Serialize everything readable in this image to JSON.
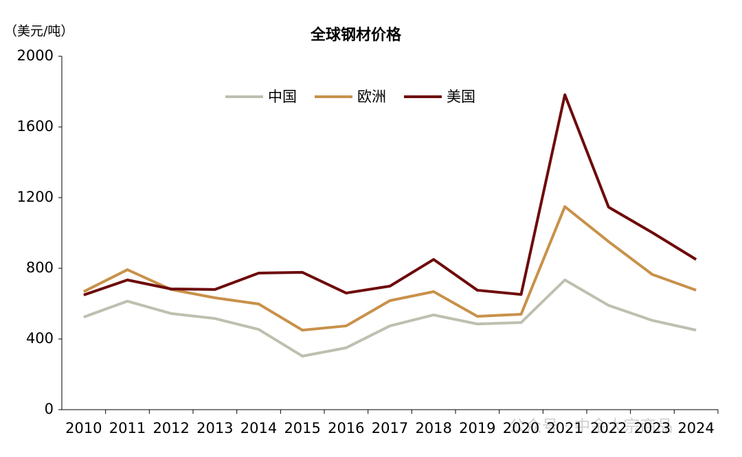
{
  "chart_data": {
    "type": "line",
    "title": "全球钢材价格",
    "y_label": "（美元/吨）",
    "categories": [
      "2010",
      "2011",
      "2012",
      "2013",
      "2014",
      "2015",
      "2016",
      "2017",
      "2018",
      "2019",
      "2020",
      "2021",
      "2022",
      "2023",
      "2024"
    ],
    "series": [
      {
        "name": "中国",
        "color": "#bfbfb0",
        "values": [
          524,
          614,
          544,
          516,
          454,
          303,
          350,
          474,
          536,
          485,
          493,
          734,
          590,
          505,
          450
        ]
      },
      {
        "name": "欧洲",
        "color": "#c8914a",
        "values": [
          668,
          792,
          680,
          633,
          598,
          450,
          474,
          617,
          668,
          528,
          540,
          1149,
          951,
          765,
          676
        ]
      },
      {
        "name": "美国",
        "color": "#6e0a0a",
        "values": [
          649,
          734,
          683,
          680,
          773,
          777,
          660,
          699,
          850,
          676,
          652,
          1782,
          1146,
          1002,
          850
        ]
      }
    ],
    "ylim": [
      0,
      2000
    ],
    "yticks": [
      0,
      400,
      800,
      1200,
      1600,
      2000
    ],
    "grid": false,
    "legend": "top",
    "watermark": "公众号 · 中金大宗商品"
  }
}
